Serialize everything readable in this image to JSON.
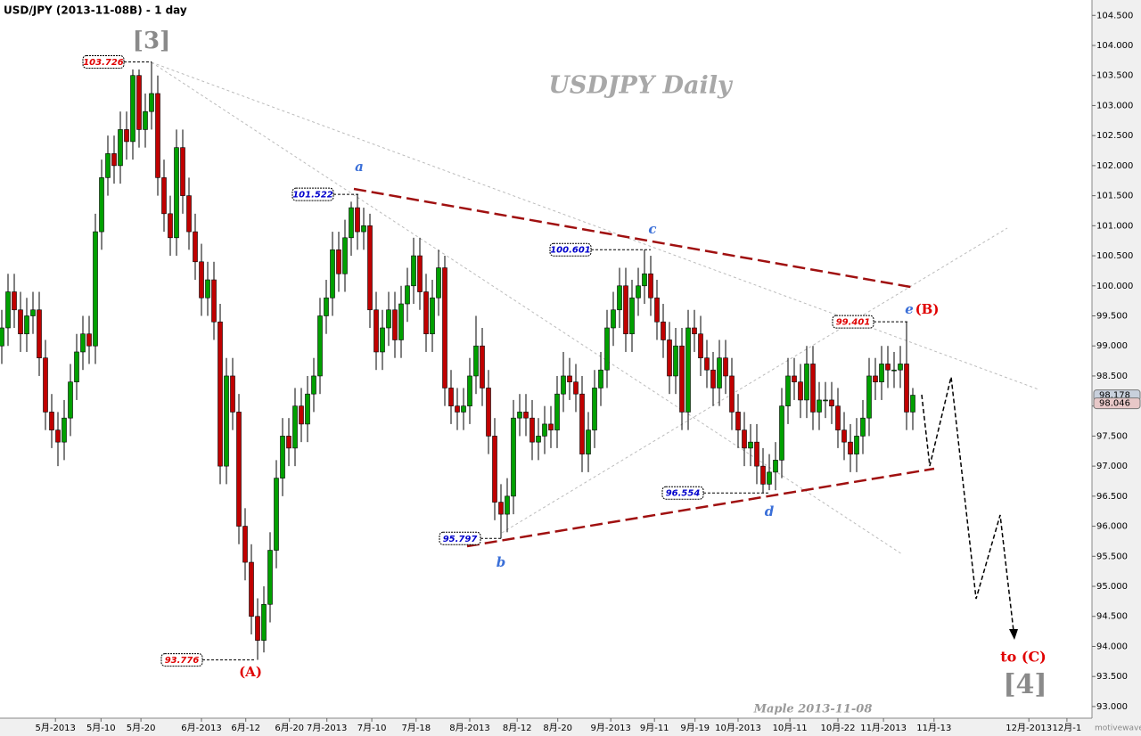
{
  "chart_data": {
    "type": "candlestick",
    "title": "USD/JPY (2013-11-08B) - 1 day",
    "watermark": "USDJPY  Daily",
    "signature": "Maple  2013-11-08",
    "brand": "motivewave.com",
    "wave_labels": [
      "[3]",
      "(A)",
      "a",
      "b",
      "c",
      "d",
      "e",
      "(B)",
      "to (C)",
      "[4]"
    ],
    "price_labels": [
      103.726,
      101.522,
      100.601,
      99.401,
      96.554,
      95.797,
      93.776
    ],
    "price_label_colors": [
      "#e00000",
      "#0000cc",
      "#0000cc",
      "#e00000",
      "#0000cc",
      "#0000cc",
      "#e00000"
    ],
    "last_prices": [
      98.178,
      98.046
    ],
    "up_color": "#00a000",
    "down_color": "#c00000",
    "xlim": [
      -0.286,
      174.714
    ],
    "xticks": [
      {
        "value": 8.6,
        "label": "5月-2013"
      },
      {
        "value": 15.9,
        "label": "5月-10"
      },
      {
        "value": 22.3,
        "label": "5月-20"
      },
      {
        "value": 32,
        "label": "6月-2013"
      },
      {
        "value": 39.1,
        "label": "6月-12"
      },
      {
        "value": 46.1,
        "label": "6月-20"
      },
      {
        "value": 52.1,
        "label": "7月-2013"
      },
      {
        "value": 59.3,
        "label": "7月-10"
      },
      {
        "value": 66.4,
        "label": "7月-18"
      },
      {
        "value": 75,
        "label": "8月-2013"
      },
      {
        "value": 82.6,
        "label": "8月-12"
      },
      {
        "value": 89.1,
        "label": "8月-20"
      },
      {
        "value": 97.6,
        "label": "9月-2013"
      },
      {
        "value": 104.6,
        "label": "9月-11"
      },
      {
        "value": 111.1,
        "label": "9月-19"
      },
      {
        "value": 118,
        "label": "10月-2013"
      },
      {
        "value": 126.3,
        "label": "10月-11"
      },
      {
        "value": 134,
        "label": "10月-22"
      },
      {
        "value": 141.3,
        "label": "11月-2013"
      },
      {
        "value": 149.4,
        "label": "11月-13"
      },
      {
        "value": 164.6,
        "label": "12月-2013"
      },
      {
        "value": 170.7,
        "label": "12月-1"
      }
    ],
    "ylim": [
      92.806,
      104.756
    ],
    "yticks": [
      {
        "value": 93,
        "label": "93.000"
      },
      {
        "value": 93.5,
        "label": "93.500"
      },
      {
        "value": 94,
        "label": "94.000"
      },
      {
        "value": 94.5,
        "label": "94.500"
      },
      {
        "value": 95,
        "label": "95.000"
      },
      {
        "value": 95.5,
        "label": "95.500"
      },
      {
        "value": 96,
        "label": "96.000"
      },
      {
        "value": 96.5,
        "label": "96.500"
      },
      {
        "value": 97,
        "label": "97.000"
      },
      {
        "value": 97.5,
        "label": "97.500"
      },
      {
        "value": 98,
        "label": "98.000"
      },
      {
        "value": 98.5,
        "label": "98.500"
      },
      {
        "value": 99,
        "label": "99.000"
      },
      {
        "value": 99.5,
        "label": "99.500"
      },
      {
        "value": 100,
        "label": "100.000"
      },
      {
        "value": 100.5,
        "label": "100.500"
      },
      {
        "value": 101,
        "label": "101.000"
      },
      {
        "value": 101.5,
        "label": "101.500"
      },
      {
        "value": 102,
        "label": "102.000"
      },
      {
        "value": 102.5,
        "label": "102.500"
      },
      {
        "value": 103,
        "label": "103.000"
      },
      {
        "value": 103.5,
        "label": "103.500"
      },
      {
        "value": 104,
        "label": "104.000"
      },
      {
        "value": 104.5,
        "label": "104.500"
      }
    ],
    "open": [
      99.0,
      99.3,
      99.9,
      99.6,
      99.2,
      99.5,
      99.6,
      98.8,
      97.9,
      97.6,
      97.4,
      97.8,
      98.4,
      98.9,
      99.2,
      99.0,
      100.9,
      101.8,
      102.2,
      102.0,
      102.6,
      102.4,
      103.5,
      102.6,
      102.9,
      103.2,
      101.8,
      101.2,
      100.8,
      102.3,
      101.5,
      100.9,
      100.4,
      99.8,
      100.1,
      99.4,
      97.0,
      98.5,
      97.9,
      96.0,
      95.4,
      94.5,
      94.1,
      94.7,
      95.6,
      96.8,
      97.5,
      97.3,
      98.0,
      97.7,
      98.2,
      98.5,
      99.5,
      99.8,
      100.6,
      100.2,
      100.8,
      101.3,
      100.9,
      101.0,
      99.6,
      98.9,
      99.3,
      99.6,
      99.1,
      99.7,
      100.0,
      100.5,
      99.9,
      99.2,
      99.8,
      100.3,
      98.3,
      98.0,
      97.9,
      98.0,
      98.5,
      99.0,
      98.3,
      97.5,
      96.4,
      96.2,
      96.5,
      97.8,
      97.9,
      97.8,
      97.4,
      97.5,
      97.7,
      97.6,
      98.2,
      98.5,
      98.4,
      98.2,
      97.2,
      97.6,
      98.3,
      98.6,
      99.3,
      99.6,
      100.0,
      99.2,
      99.8,
      100.0,
      100.2,
      99.8,
      99.4,
      99.1,
      98.5,
      99.0,
      97.9,
      99.3,
      99.2,
      98.8,
      98.6,
      98.3,
      98.8,
      98.5,
      97.9,
      97.6,
      97.3,
      97.4,
      97.0,
      96.7,
      96.9,
      97.1,
      98.0,
      98.5,
      98.4,
      98.1,
      98.7,
      97.9,
      98.1,
      98.1,
      98.0,
      97.6,
      97.4,
      97.2,
      97.5,
      97.8,
      98.5,
      98.4,
      98.7,
      98.6,
      98.6,
      98.7,
      97.9
    ],
    "high": [
      99.6,
      100.2,
      100.2,
      99.9,
      99.8,
      99.9,
      99.9,
      99.1,
      98.2,
      97.9,
      98.1,
      98.7,
      99.2,
      99.5,
      99.5,
      101.2,
      102.1,
      102.5,
      102.5,
      102.9,
      102.9,
      103.6,
      103.6,
      103.2,
      103.726,
      103.5,
      102.1,
      101.5,
      102.6,
      102.6,
      101.8,
      101.2,
      100.7,
      100.4,
      100.4,
      99.7,
      98.8,
      98.8,
      98.2,
      96.3,
      95.7,
      94.8,
      95.0,
      95.9,
      97.1,
      97.8,
      97.8,
      98.3,
      98.3,
      98.5,
      98.8,
      99.8,
      100.1,
      100.9,
      100.9,
      101.1,
      101.4,
      101.522,
      101.3,
      101.2,
      99.9,
      99.6,
      99.9,
      99.9,
      100.0,
      100.3,
      100.8,
      100.8,
      100.2,
      100.1,
      100.6,
      100.5,
      98.6,
      98.3,
      98.3,
      98.8,
      99.5,
      99.3,
      98.6,
      97.8,
      96.7,
      96.8,
      98.1,
      98.2,
      98.2,
      98.1,
      97.8,
      98.0,
      98.0,
      98.5,
      98.9,
      98.8,
      98.7,
      98.5,
      97.9,
      98.6,
      98.9,
      99.6,
      99.9,
      100.3,
      100.3,
      100.1,
      100.3,
      100.601,
      100.5,
      100.1,
      99.7,
      99.4,
      99.3,
      99.3,
      99.6,
      99.6,
      99.5,
      99.1,
      98.9,
      99.1,
      99.1,
      98.8,
      98.2,
      97.9,
      97.7,
      97.7,
      97.3,
      97.2,
      97.4,
      98.3,
      98.8,
      98.8,
      98.7,
      99.0,
      99.0,
      98.4,
      98.4,
      98.4,
      98.3,
      97.9,
      97.7,
      97.8,
      98.1,
      98.8,
      98.8,
      99.0,
      99.0,
      98.9,
      99.0,
      99.401,
      98.3
    ],
    "low": [
      98.7,
      99.0,
      99.3,
      98.9,
      98.9,
      99.2,
      98.5,
      97.6,
      97.3,
      97.0,
      97.1,
      97.5,
      98.1,
      98.6,
      98.7,
      98.7,
      100.6,
      101.5,
      101.7,
      101.7,
      102.1,
      102.1,
      102.3,
      102.3,
      102.6,
      101.5,
      100.9,
      100.5,
      100.5,
      101.2,
      100.6,
      100.1,
      99.5,
      99.5,
      99.1,
      96.7,
      96.7,
      97.6,
      95.7,
      95.1,
      94.2,
      93.776,
      93.9,
      94.4,
      95.3,
      96.5,
      97.0,
      97.0,
      97.4,
      97.4,
      97.9,
      98.2,
      99.2,
      99.5,
      99.9,
      99.9,
      100.5,
      100.6,
      100.6,
      99.3,
      98.6,
      98.6,
      99.0,
      98.8,
      98.8,
      99.4,
      99.7,
      99.6,
      98.9,
      98.9,
      99.5,
      98.0,
      97.7,
      97.6,
      97.6,
      97.7,
      98.2,
      98.0,
      97.2,
      96.1,
      95.797,
      95.9,
      96.2,
      97.5,
      97.5,
      97.1,
      97.1,
      97.2,
      97.3,
      97.3,
      97.9,
      98.1,
      97.9,
      96.9,
      96.9,
      97.3,
      98.0,
      98.3,
      99.0,
      99.3,
      98.9,
      98.9,
      99.5,
      99.7,
      99.5,
      99.1,
      98.8,
      98.2,
      98.2,
      97.6,
      97.6,
      98.9,
      98.5,
      98.3,
      98.0,
      98.0,
      98.2,
      97.6,
      97.3,
      97.0,
      97.0,
      96.7,
      96.554,
      96.6,
      96.6,
      96.8,
      97.7,
      98.1,
      97.8,
      97.8,
      97.6,
      97.6,
      97.8,
      97.7,
      97.3,
      97.1,
      96.9,
      96.9,
      97.2,
      97.5,
      98.1,
      98.1,
      98.3,
      98.3,
      98.3,
      97.6,
      97.6
    ],
    "close": [
      99.3,
      99.9,
      99.6,
      99.2,
      99.5,
      99.6,
      98.8,
      97.9,
      97.6,
      97.4,
      97.8,
      98.4,
      98.9,
      99.2,
      99.0,
      100.9,
      101.8,
      102.2,
      102.0,
      102.6,
      102.4,
      103.5,
      102.6,
      102.9,
      103.2,
      101.8,
      101.2,
      100.8,
      102.3,
      101.5,
      100.9,
      100.4,
      99.8,
      100.1,
      99.4,
      97.0,
      98.5,
      97.9,
      96.0,
      95.4,
      94.5,
      94.1,
      94.7,
      95.6,
      96.8,
      97.5,
      97.3,
      98.0,
      97.7,
      98.2,
      98.5,
      99.5,
      99.8,
      100.6,
      100.2,
      100.8,
      101.3,
      100.9,
      101.0,
      99.6,
      98.9,
      99.3,
      99.6,
      99.1,
      99.7,
      100.0,
      100.5,
      99.9,
      99.2,
      99.8,
      100.3,
      98.3,
      98.0,
      97.9,
      98.0,
      98.5,
      99.0,
      98.3,
      97.5,
      96.4,
      96.2,
      96.5,
      97.8,
      97.9,
      97.8,
      97.4,
      97.5,
      97.7,
      97.6,
      98.2,
      98.5,
      98.4,
      98.2,
      97.2,
      97.6,
      98.3,
      98.6,
      99.3,
      99.6,
      100.0,
      99.2,
      99.8,
      100.0,
      100.2,
      99.8,
      99.4,
      99.1,
      98.5,
      99.0,
      97.9,
      99.3,
      99.2,
      98.8,
      98.6,
      98.3,
      98.8,
      98.5,
      97.9,
      97.6,
      97.3,
      97.4,
      97.0,
      96.7,
      96.9,
      97.1,
      98.0,
      98.5,
      98.4,
      98.1,
      98.7,
      97.9,
      98.1,
      98.1,
      98.0,
      97.6,
      97.4,
      97.2,
      97.5,
      97.8,
      98.5,
      98.4,
      98.7,
      98.6,
      98.6,
      98.7,
      97.9,
      98.18
    ]
  }
}
